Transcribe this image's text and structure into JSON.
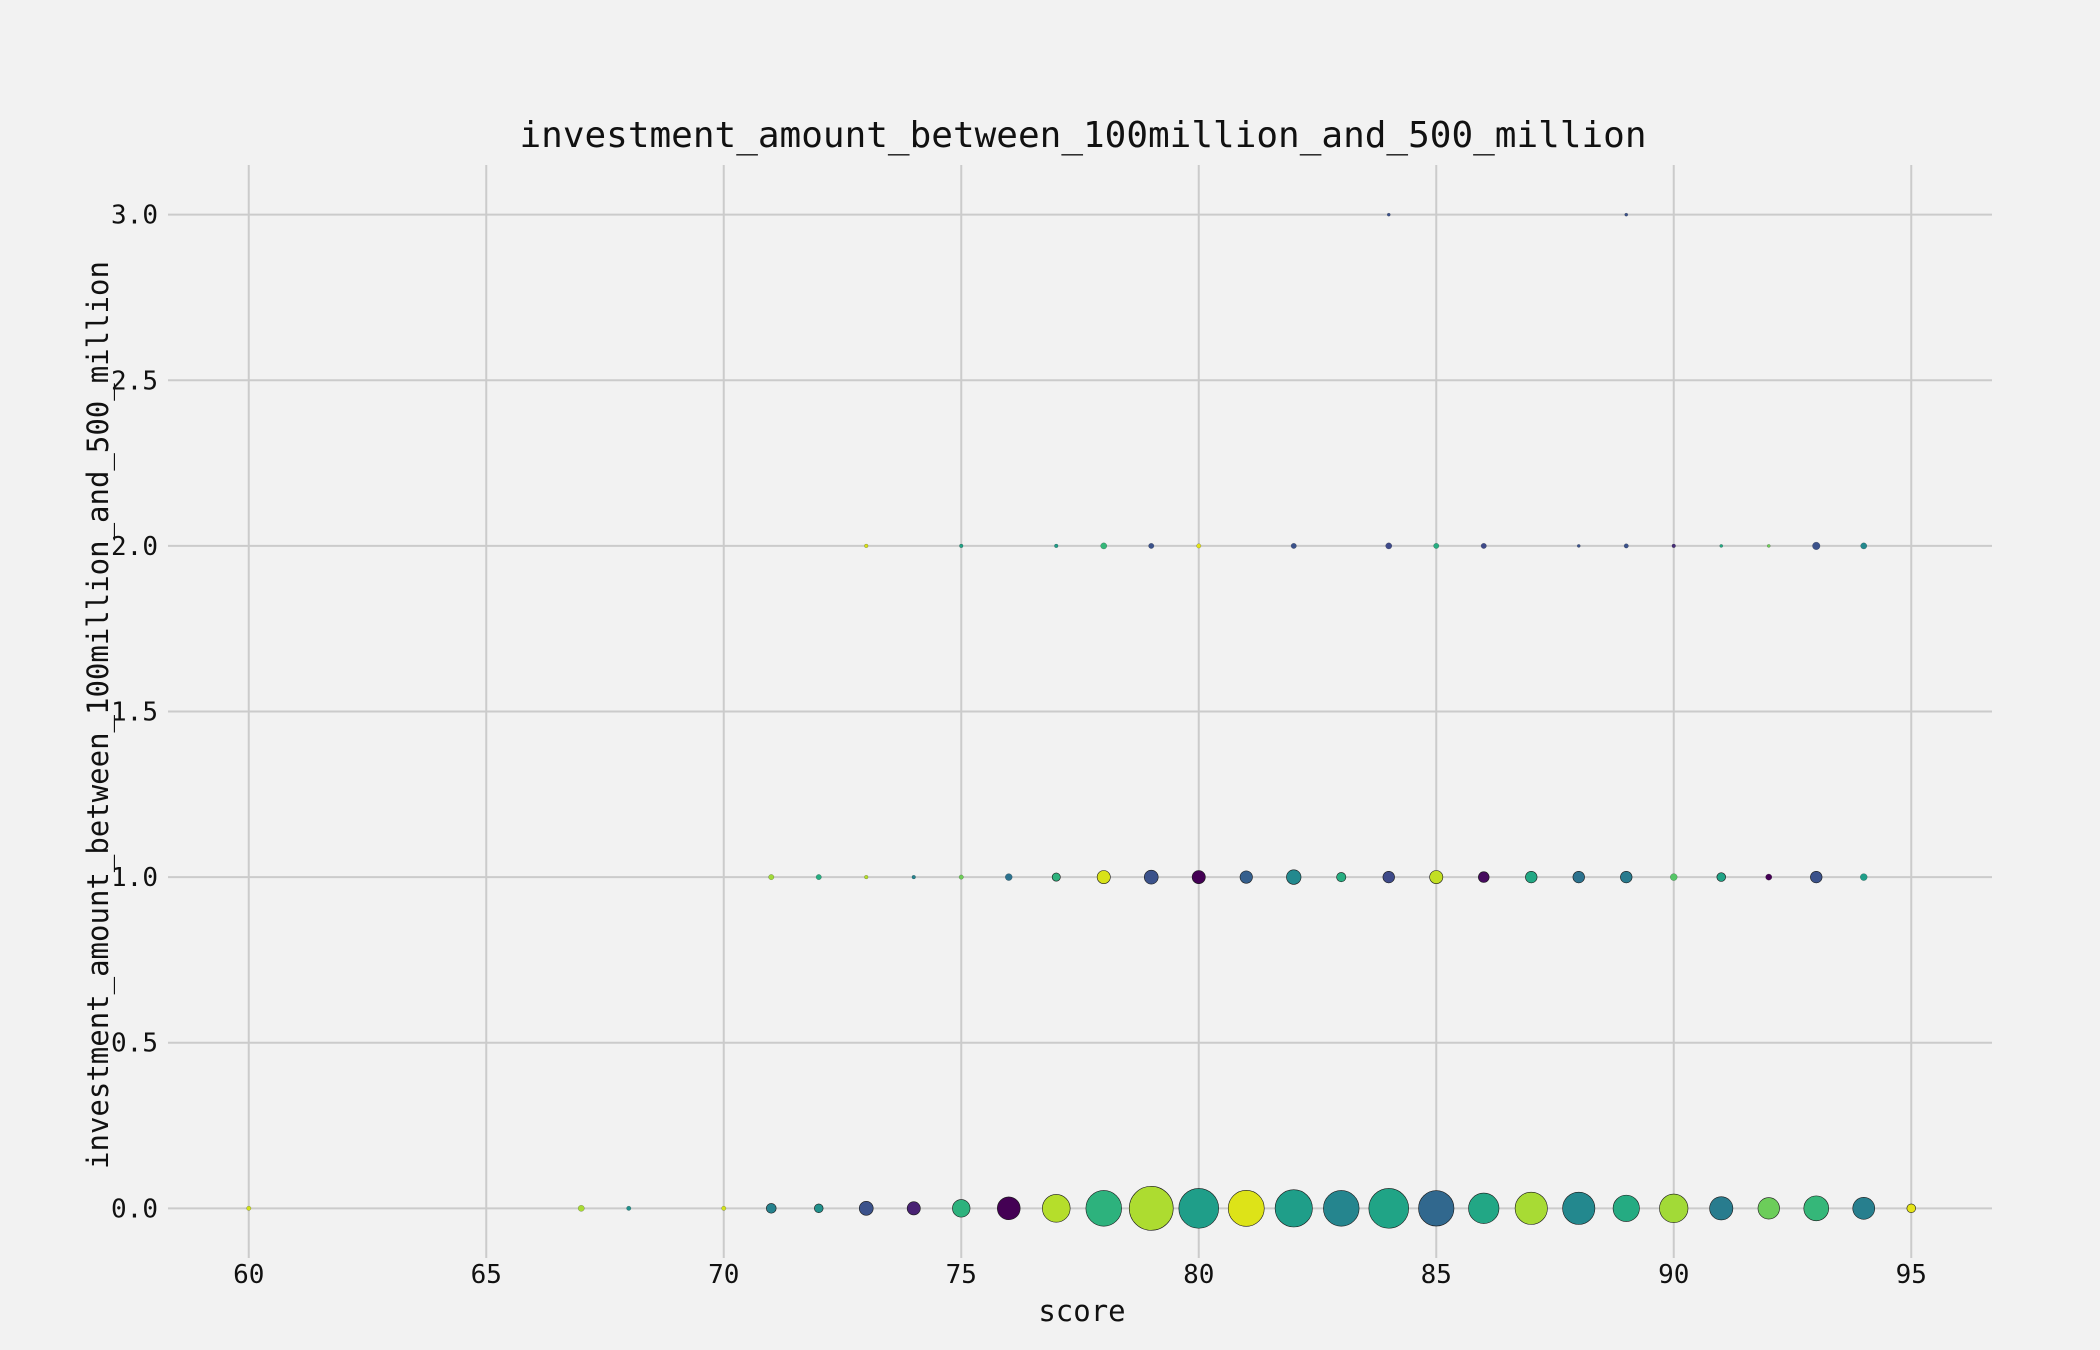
{
  "chart_data": {
    "type": "scatter",
    "title": "investment_amount_between_100million_and_500_million",
    "xlabel": "score",
    "ylabel": "investment_amount_between_100million_and_500_million",
    "xlim": [
      58.3,
      96.7
    ],
    "ylim": [
      -0.15,
      3.15
    ],
    "xticks": [
      60,
      65,
      70,
      75,
      80,
      85,
      90,
      95
    ],
    "yticks": [
      0.0,
      0.5,
      1.0,
      1.5,
      2.0,
      2.5,
      3.0
    ],
    "xtick_labels": [
      "60",
      "65",
      "70",
      "75",
      "80",
      "85",
      "90",
      "95"
    ],
    "ytick_labels": [
      "0.0",
      "0.5",
      "1.0",
      "1.5",
      "2.0",
      "2.5",
      "3.0"
    ],
    "grid": true,
    "marker_size_encoding": "relative count",
    "colormap": "viridis",
    "points": [
      {
        "x": 60,
        "y": 0,
        "size": 1,
        "color": "#d2e21b"
      },
      {
        "x": 67,
        "y": 0,
        "size": 2,
        "color": "#a8db34"
      },
      {
        "x": 68,
        "y": 0,
        "size": 1,
        "color": "#21918c"
      },
      {
        "x": 70,
        "y": 0,
        "size": 1,
        "color": "#d2e21b"
      },
      {
        "x": 71,
        "y": 0,
        "size": 5,
        "color": "#26828e"
      },
      {
        "x": 72,
        "y": 0,
        "size": 4,
        "color": "#21918c"
      },
      {
        "x": 73,
        "y": 0,
        "size": 10,
        "color": "#3b528b"
      },
      {
        "x": 74,
        "y": 0,
        "size": 9,
        "color": "#482173"
      },
      {
        "x": 75,
        "y": 0,
        "size": 16,
        "color": "#2db27d"
      },
      {
        "x": 76,
        "y": 0,
        "size": 27,
        "color": "#440154"
      },
      {
        "x": 77,
        "y": 0,
        "size": 40,
        "color": "#b5de2b"
      },
      {
        "x": 78,
        "y": 0,
        "size": 66,
        "color": "#2db27d"
      },
      {
        "x": 79,
        "y": 0,
        "size": 100,
        "color": "#addc30"
      },
      {
        "x": 80,
        "y": 0,
        "size": 82,
        "color": "#1f9e89"
      },
      {
        "x": 81,
        "y": 0,
        "size": 67,
        "color": "#dde318"
      },
      {
        "x": 82,
        "y": 0,
        "size": 72,
        "color": "#1f9e89"
      },
      {
        "x": 83,
        "y": 0,
        "size": 66,
        "color": "#25858e"
      },
      {
        "x": 84,
        "y": 0,
        "size": 82,
        "color": "#20a486"
      },
      {
        "x": 85,
        "y": 0,
        "size": 65,
        "color": "#31688e"
      },
      {
        "x": 86,
        "y": 0,
        "size": 48,
        "color": "#22a785"
      },
      {
        "x": 87,
        "y": 0,
        "size": 54,
        "color": "#a8db34"
      },
      {
        "x": 88,
        "y": 0,
        "size": 54,
        "color": "#23888e"
      },
      {
        "x": 89,
        "y": 0,
        "size": 36,
        "color": "#25ab82"
      },
      {
        "x": 90,
        "y": 0,
        "size": 42,
        "color": "#a2da37"
      },
      {
        "x": 91,
        "y": 0,
        "size": 28,
        "color": "#287c8e"
      },
      {
        "x": 92,
        "y": 0,
        "size": 24,
        "color": "#6ccd5a"
      },
      {
        "x": 93,
        "y": 0,
        "size": 32,
        "color": "#35b779"
      },
      {
        "x": 94,
        "y": 0,
        "size": 25,
        "color": "#277f8e"
      },
      {
        "x": 95,
        "y": 0,
        "size": 4,
        "color": "#e5e419"
      },
      {
        "x": 71,
        "y": 1,
        "size": 1.5,
        "color": "#a0da39"
      },
      {
        "x": 72,
        "y": 1,
        "size": 1.5,
        "color": "#27ad81"
      },
      {
        "x": 73,
        "y": 1,
        "size": 0.7,
        "color": "#b5de2b"
      },
      {
        "x": 74,
        "y": 1,
        "size": 0.7,
        "color": "#25838e"
      },
      {
        "x": 75,
        "y": 1,
        "size": 1,
        "color": "#6ece58"
      },
      {
        "x": 76,
        "y": 1,
        "size": 2.5,
        "color": "#2c728e"
      },
      {
        "x": 77,
        "y": 1,
        "size": 3.5,
        "color": "#2db27d"
      },
      {
        "x": 78,
        "y": 1,
        "size": 9,
        "color": "#d8e219"
      },
      {
        "x": 79,
        "y": 1,
        "size": 10,
        "color": "#3b528b"
      },
      {
        "x": 80,
        "y": 1,
        "size": 9,
        "color": "#440154"
      },
      {
        "x": 81,
        "y": 1,
        "size": 8,
        "color": "#355f8d"
      },
      {
        "x": 82,
        "y": 1,
        "size": 11,
        "color": "#23898e"
      },
      {
        "x": 83,
        "y": 1,
        "size": 4.5,
        "color": "#27ad81"
      },
      {
        "x": 84,
        "y": 1,
        "size": 7,
        "color": "#3e4a89"
      },
      {
        "x": 85,
        "y": 1,
        "size": 9,
        "color": "#c2df23"
      },
      {
        "x": 86,
        "y": 1,
        "size": 6,
        "color": "#460b5e"
      },
      {
        "x": 87,
        "y": 1,
        "size": 7,
        "color": "#22a884"
      },
      {
        "x": 88,
        "y": 1,
        "size": 7,
        "color": "#2c728e"
      },
      {
        "x": 89,
        "y": 1,
        "size": 7,
        "color": "#297b8e"
      },
      {
        "x": 90,
        "y": 1,
        "size": 2.5,
        "color": "#55c667"
      },
      {
        "x": 91,
        "y": 1,
        "size": 4,
        "color": "#20a386"
      },
      {
        "x": 92,
        "y": 1,
        "size": 2,
        "color": "#440154"
      },
      {
        "x": 93,
        "y": 1,
        "size": 7,
        "color": "#3b528b"
      },
      {
        "x": 94,
        "y": 1,
        "size": 2.5,
        "color": "#1f9e89"
      },
      {
        "x": 73,
        "y": 2,
        "size": 0.7,
        "color": "#d8e219"
      },
      {
        "x": 75,
        "y": 2,
        "size": 0.7,
        "color": "#20a386"
      },
      {
        "x": 77,
        "y": 2,
        "size": 0.7,
        "color": "#1f9e89"
      },
      {
        "x": 78,
        "y": 2,
        "size": 2,
        "color": "#35b779"
      },
      {
        "x": 79,
        "y": 2,
        "size": 1.5,
        "color": "#3b528b"
      },
      {
        "x": 80,
        "y": 2,
        "size": 1,
        "color": "#e5e419"
      },
      {
        "x": 82,
        "y": 2,
        "size": 1.5,
        "color": "#3b528b"
      },
      {
        "x": 84,
        "y": 2,
        "size": 2,
        "color": "#3e4a89"
      },
      {
        "x": 85,
        "y": 2,
        "size": 1.5,
        "color": "#27ad81"
      },
      {
        "x": 86,
        "y": 2,
        "size": 1.5,
        "color": "#3e4a89"
      },
      {
        "x": 88,
        "y": 2,
        "size": 0.5,
        "color": "#3b528b"
      },
      {
        "x": 89,
        "y": 2,
        "size": 1,
        "color": "#3b528b"
      },
      {
        "x": 90,
        "y": 2,
        "size": 0.7,
        "color": "#472d7b"
      },
      {
        "x": 91,
        "y": 2,
        "size": 0.5,
        "color": "#23a983"
      },
      {
        "x": 92,
        "y": 2,
        "size": 0.5,
        "color": "#6ece58"
      },
      {
        "x": 93,
        "y": 2,
        "size": 3,
        "color": "#3b528b"
      },
      {
        "x": 94,
        "y": 2,
        "size": 2,
        "color": "#23898e"
      },
      {
        "x": 84,
        "y": 3,
        "size": 0.5,
        "color": "#3b528b"
      },
      {
        "x": 89,
        "y": 3,
        "size": 0.5,
        "color": "#3b528b"
      }
    ]
  }
}
